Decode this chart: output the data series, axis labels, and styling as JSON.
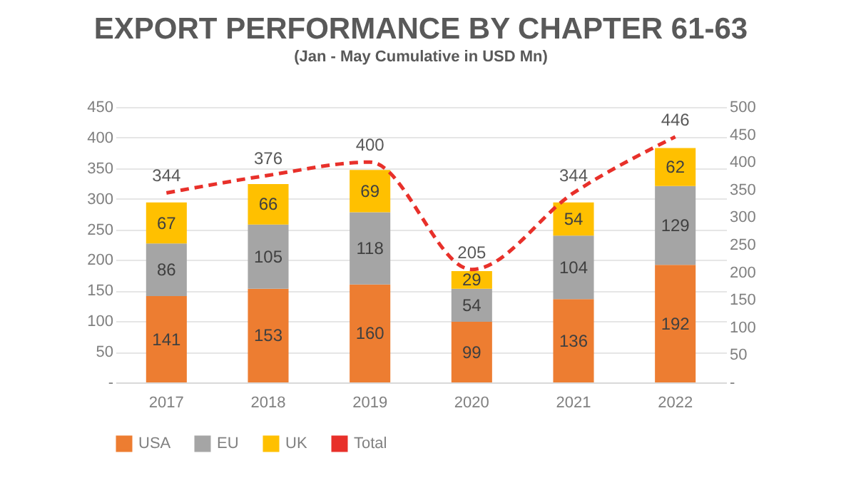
{
  "chart_data": {
    "type": "bar",
    "title": "EXPORT PERFORMANCE BY CHAPTER 61-63",
    "subtitle": "(Jan - May Cumulative in USD Mn)",
    "categories": [
      "2017",
      "2018",
      "2019",
      "2020",
      "2021",
      "2022"
    ],
    "stacked": true,
    "data_labels": true,
    "grid": "y",
    "legend": "bottom",
    "ylim": [
      0,
      450
    ],
    "yticks": [
      {
        "value": 0,
        "label": "-"
      },
      50,
      100,
      150,
      200,
      250,
      300,
      350,
      400,
      450
    ],
    "y2lim": [
      0,
      500
    ],
    "y2ticks": [
      {
        "value": 0,
        "label": "-"
      },
      50,
      100,
      150,
      200,
      250,
      300,
      350,
      400,
      450,
      500
    ],
    "series": [
      {
        "name": "USA",
        "color": "#ed7d31",
        "values": [
          141,
          153,
          160,
          99,
          136,
          192
        ]
      },
      {
        "name": "EU",
        "color": "#a5a5a5",
        "values": [
          86,
          105,
          118,
          54,
          104,
          129
        ]
      },
      {
        "name": "UK",
        "color": "#ffc000",
        "values": [
          67,
          66,
          69,
          29,
          54,
          62
        ]
      },
      {
        "name": "Total",
        "type": "line",
        "axis": "y2",
        "color": "#e8302a",
        "line_style": "dashed",
        "marker": "none",
        "values": [
          344,
          376,
          400,
          205,
          344,
          446
        ]
      }
    ]
  }
}
